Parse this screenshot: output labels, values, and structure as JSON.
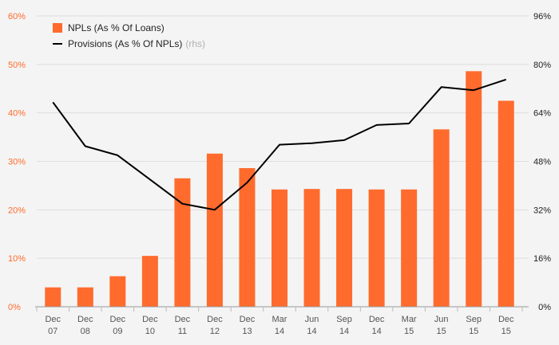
{
  "chart_data": {
    "type": "bar",
    "categories": [
      [
        "Dec",
        "07"
      ],
      [
        "Dec",
        "08"
      ],
      [
        "Dec",
        "09"
      ],
      [
        "Dec",
        "10"
      ],
      [
        "Dec",
        "11"
      ],
      [
        "Dec",
        "12"
      ],
      [
        "Dec",
        "13"
      ],
      [
        "Mar",
        "14"
      ],
      [
        "Jun",
        "14"
      ],
      [
        "Sep",
        "14"
      ],
      [
        "Dec",
        "14"
      ],
      [
        "Mar",
        "15"
      ],
      [
        "Jun",
        "15"
      ],
      [
        "Sep",
        "15"
      ],
      [
        "Dec",
        "15"
      ]
    ],
    "series": [
      {
        "name": "NPLs (As % Of Loans)",
        "type": "bar",
        "axis": "left",
        "color": "#ff6b2d",
        "values": [
          4.0,
          4.0,
          6.3,
          10.5,
          26.5,
          31.6,
          28.6,
          24.2,
          24.3,
          24.3,
          24.2,
          24.2,
          36.6,
          48.6,
          42.5
        ]
      },
      {
        "name": "Provisions (As % Of NPLs)",
        "note": "(rhs)",
        "type": "line",
        "axis": "right",
        "color": "#000000",
        "values": [
          67.5,
          53.0,
          50.0,
          42.0,
          34.0,
          32.0,
          41.0,
          53.5,
          54.0,
          55.0,
          60.0,
          60.5,
          72.5,
          71.5,
          75.0
        ]
      }
    ],
    "y_left": {
      "ticks": [
        "0%",
        "10%",
        "20%",
        "30%",
        "40%",
        "50%",
        "60%"
      ],
      "ylim": [
        0,
        60
      ]
    },
    "y_right": {
      "ticks": [
        "0%",
        "16%",
        "32%",
        "48%",
        "64%",
        "80%",
        "96%"
      ],
      "ylim": [
        0,
        96
      ]
    },
    "grid": true,
    "legend": "top-left"
  }
}
